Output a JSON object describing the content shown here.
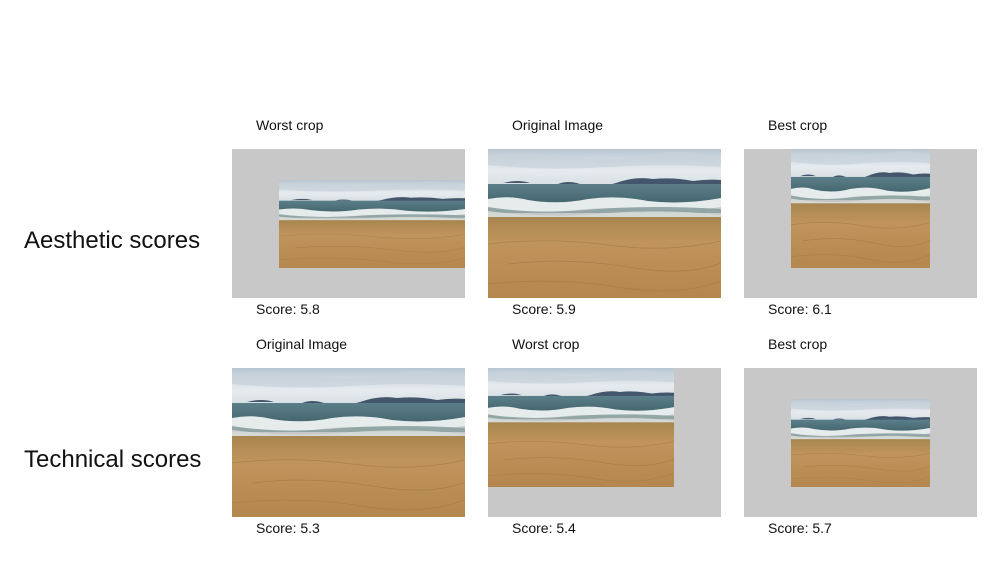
{
  "rows": [
    {
      "title": "Aesthetic scores",
      "panels": [
        {
          "label": "Worst crop",
          "score": "Score: 5.8"
        },
        {
          "label": "Original Image",
          "score": "Score: 5.9"
        },
        {
          "label": "Best crop",
          "score": "Score: 6.1"
        }
      ]
    },
    {
      "title": "Technical scores",
      "panels": [
        {
          "label": "Original Image",
          "score": "Score: 5.3"
        },
        {
          "label": "Worst crop",
          "score": "Score: 5.4"
        },
        {
          "label": "Best crop",
          "score": "Score: 5.7"
        }
      ]
    }
  ],
  "colors": {
    "padding": "#c8c8c8",
    "sky": "#e3e9ee",
    "sea": "#4f6f78",
    "foam": "#e9efee",
    "sand": "#b98f59",
    "mountains": "#44566c"
  }
}
